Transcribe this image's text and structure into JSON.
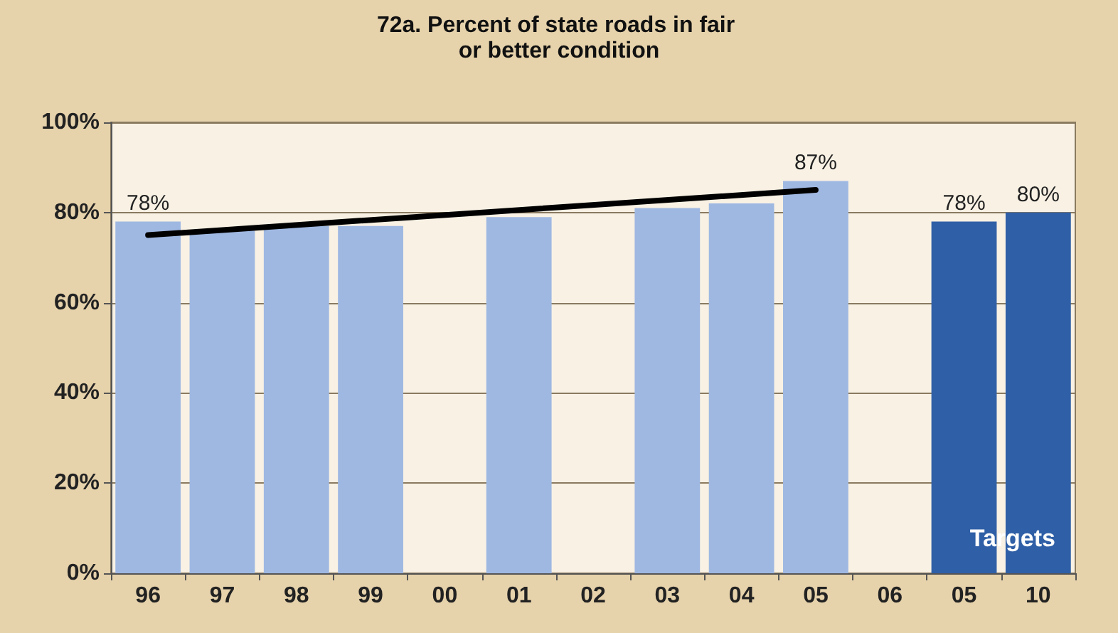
{
  "chart_data": {
    "type": "bar",
    "title": "72a. Percent of state roads in fair or better condition",
    "categories": [
      "96",
      "97",
      "98",
      "99",
      "00",
      "01",
      "02",
      "03",
      "04",
      "05",
      "06",
      "05",
      "10"
    ],
    "series": [
      {
        "color": "#9fb8e2",
        "values": [
          78,
          76,
          77,
          77,
          null,
          79,
          null,
          81,
          82,
          87,
          null,
          null,
          null
        ],
        "value_labels": [
          "78%",
          null,
          null,
          null,
          null,
          null,
          null,
          null,
          null,
          "87%",
          null,
          null,
          null
        ]
      },
      {
        "color": "#2f5fa6",
        "values": [
          null,
          null,
          null,
          null,
          null,
          null,
          null,
          null,
          null,
          null,
          null,
          78,
          80
        ],
        "value_labels": [
          null,
          null,
          null,
          null,
          null,
          null,
          null,
          null,
          null,
          null,
          null,
          "78%",
          "80%"
        ]
      },
      {
        "type": "line",
        "color": "#000000",
        "values": [
          75,
          null,
          null,
          null,
          null,
          null,
          null,
          null,
          null,
          85,
          null,
          null,
          null
        ]
      }
    ],
    "ylim": [
      0,
      100
    ],
    "yticks": [
      {
        "value": 0,
        "label": "0%"
      },
      {
        "value": 20,
        "label": "20%"
      },
      {
        "value": 40,
        "label": "40%"
      },
      {
        "value": 60,
        "label": "60%"
      },
      {
        "value": 80,
        "label": "80%"
      },
      {
        "value": 100,
        "label": "100%"
      }
    ],
    "grid": "y",
    "marker": "none",
    "line_style": "solid",
    "annotations": [
      "Targets"
    ]
  }
}
